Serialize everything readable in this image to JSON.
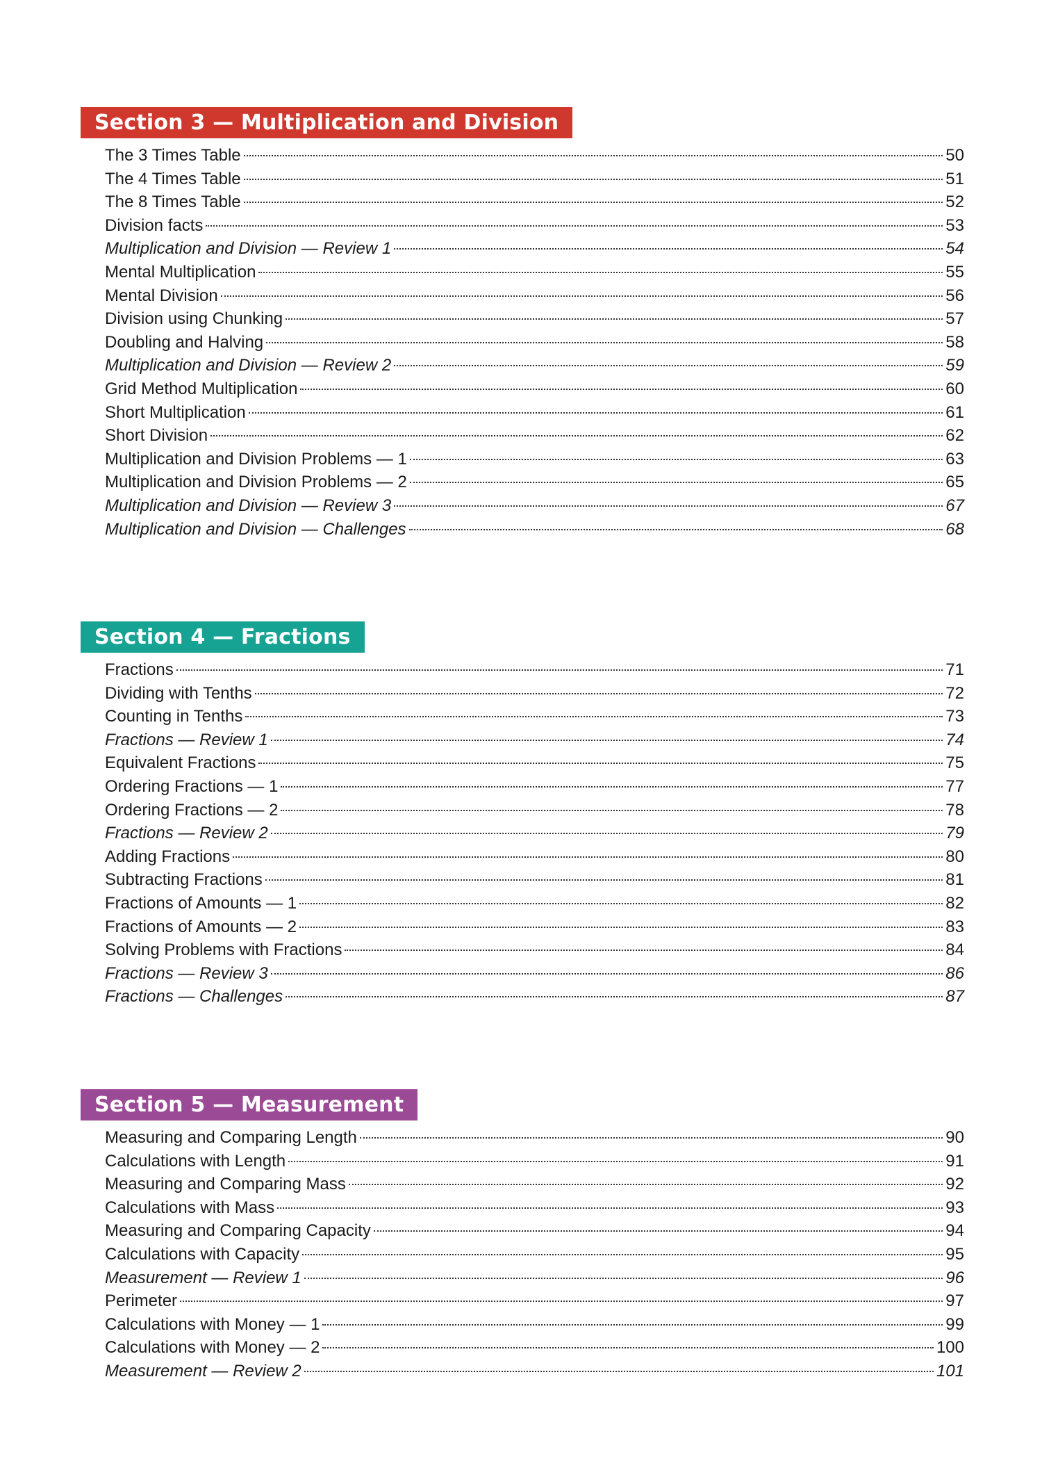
{
  "colors": {
    "section3": "#d1382d",
    "section4": "#17a394",
    "section5": "#9b4a96"
  },
  "sections": [
    {
      "title": "Section 3 — Multiplication and Division",
      "items": [
        {
          "title": "The 3 Times Table",
          "page": "50",
          "italic": false
        },
        {
          "title": "The 4 Times Table",
          "page": "51",
          "italic": false
        },
        {
          "title": "The 8 Times Table",
          "page": "52",
          "italic": false
        },
        {
          "title": "Division facts",
          "page": "53",
          "italic": false
        },
        {
          "title": "Multiplication and Division — Review 1",
          "page": "54",
          "italic": true
        },
        {
          "title": "Mental Multiplication",
          "page": "55",
          "italic": false
        },
        {
          "title": "Mental Division",
          "page": "56",
          "italic": false
        },
        {
          "title": "Division using Chunking",
          "page": "57",
          "italic": false
        },
        {
          "title": "Doubling and Halving",
          "page": "58",
          "italic": false
        },
        {
          "title": "Multiplication and Division — Review 2",
          "page": "59",
          "italic": true
        },
        {
          "title": "Grid Method Multiplication",
          "page": "60",
          "italic": false
        },
        {
          "title": "Short Multiplication",
          "page": "61",
          "italic": false
        },
        {
          "title": "Short Division",
          "page": "62",
          "italic": false
        },
        {
          "title": "Multiplication and Division Problems — 1",
          "page": "63",
          "italic": false
        },
        {
          "title": "Multiplication and Division Problems — 2",
          "page": "65",
          "italic": false
        },
        {
          "title": "Multiplication and Division — Review 3",
          "page": "67",
          "italic": true
        },
        {
          "title": "Multiplication and Division — Challenges",
          "page": "68",
          "italic": true
        }
      ]
    },
    {
      "title": "Section 4 — Fractions",
      "items": [
        {
          "title": "Fractions",
          "page": "71",
          "italic": false
        },
        {
          "title": "Dividing with Tenths",
          "page": "72",
          "italic": false
        },
        {
          "title": "Counting in Tenths",
          "page": "73",
          "italic": false
        },
        {
          "title": "Fractions — Review 1",
          "page": "74",
          "italic": true
        },
        {
          "title": "Equivalent Fractions",
          "page": "75",
          "italic": false
        },
        {
          "title": "Ordering Fractions — 1",
          "page": "77",
          "italic": false
        },
        {
          "title": "Ordering Fractions — 2",
          "page": "78",
          "italic": false
        },
        {
          "title": "Fractions — Review 2",
          "page": "79",
          "italic": true
        },
        {
          "title": "Adding Fractions",
          "page": "80",
          "italic": false
        },
        {
          "title": "Subtracting Fractions",
          "page": "81",
          "italic": false
        },
        {
          "title": "Fractions of Amounts — 1",
          "page": "82",
          "italic": false
        },
        {
          "title": "Fractions of Amounts — 2",
          "page": "83",
          "italic": false
        },
        {
          "title": "Solving Problems with Fractions",
          "page": "84",
          "italic": false
        },
        {
          "title": "Fractions — Review 3",
          "page": "86",
          "italic": true
        },
        {
          "title": "Fractions — Challenges",
          "page": "87",
          "italic": true
        }
      ]
    },
    {
      "title": "Section 5 — Measurement",
      "items": [
        {
          "title": "Measuring and Comparing Length",
          "page": "90",
          "italic": false
        },
        {
          "title": "Calculations with Length",
          "page": "91",
          "italic": false
        },
        {
          "title": "Measuring and Comparing Mass",
          "page": "92",
          "italic": false
        },
        {
          "title": "Calculations with Mass",
          "page": "93",
          "italic": false
        },
        {
          "title": "Measuring and Comparing Capacity",
          "page": "94",
          "italic": false
        },
        {
          "title": "Calculations with Capacity",
          "page": "95",
          "italic": false
        },
        {
          "title": "Measurement — Review 1",
          "page": "96",
          "italic": true
        },
        {
          "title": "Perimeter",
          "page": "97",
          "italic": false
        },
        {
          "title": "Calculations with Money — 1",
          "page": "99",
          "italic": false
        },
        {
          "title": "Calculations with Money — 2",
          "page": "100",
          "italic": false
        },
        {
          "title": "Measurement — Review 2",
          "page": "101",
          "italic": true
        }
      ]
    }
  ]
}
